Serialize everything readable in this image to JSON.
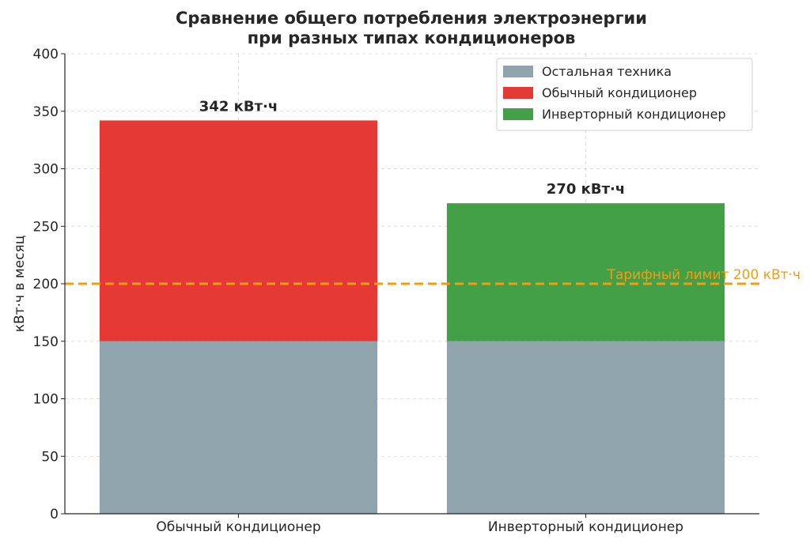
{
  "chart_data": {
    "type": "bar",
    "stacked": true,
    "title_lines": [
      "Сравнение общего потребления электроэнергии",
      "при разных типах кондиционеров"
    ],
    "xlabel": "",
    "ylabel": "кВт·ч в месяц",
    "ylim": [
      0,
      400
    ],
    "yticks": [
      0,
      50,
      100,
      150,
      200,
      250,
      300,
      350,
      400
    ],
    "grid": true,
    "legend_position": "top-right",
    "categories": [
      "Обычный кондиционер",
      "Инверторный кондиционер"
    ],
    "series": [
      {
        "name": "Остальная техника",
        "color": "#90a4ae",
        "values": [
          150,
          150
        ]
      },
      {
        "name": "Обычный кондиционер",
        "color": "#e53935",
        "values": [
          192,
          0
        ]
      },
      {
        "name": "Инверторный кондиционер",
        "color": "#43a047",
        "values": [
          0,
          120
        ]
      }
    ],
    "totals": [
      342,
      270
    ],
    "total_labels": [
      "342 кВт·ч",
      "270 кВт·ч"
    ],
    "reference_line": {
      "value": 200,
      "label": "Тарифный лимит 200 кВт·ч",
      "color": "#f39c12"
    }
  }
}
